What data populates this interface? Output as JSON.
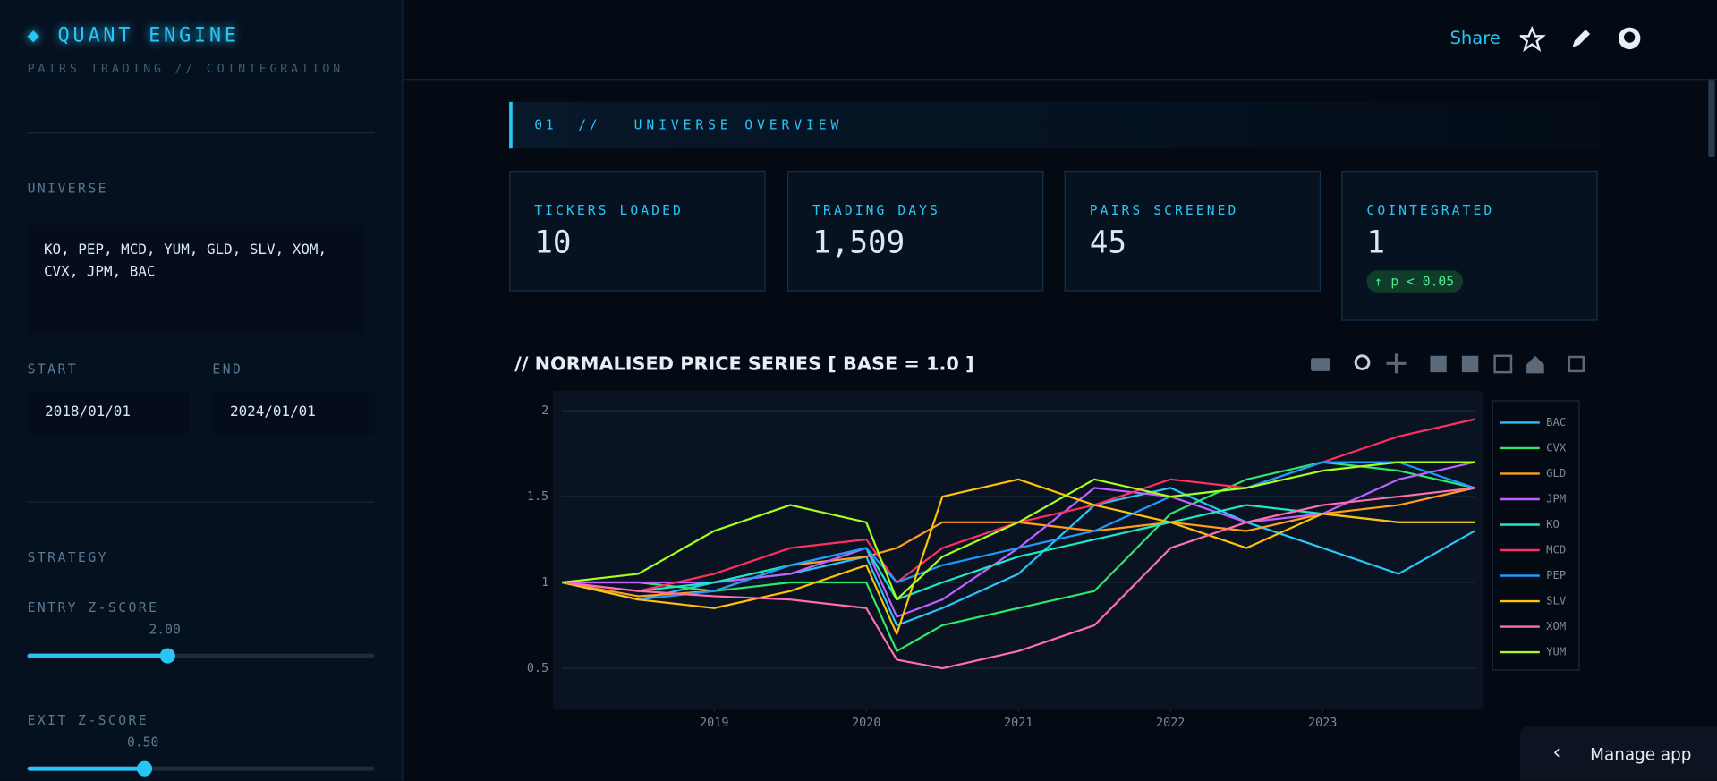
{
  "sidebar": {
    "brand": "◆ QUANT ENGINE",
    "tagline": "PAIRS TRADING // COINTEGRATION",
    "universe_label": "UNIVERSE",
    "universe_value": "KO, PEP, MCD, YUM, GLD, SLV, XOM, CVX, JPM, BAC",
    "start_label": "START",
    "start_value": "2018/01/01",
    "end_label": "END",
    "end_value": "2024/01/01",
    "strategy_label": "STRATEGY",
    "entry_label": "ENTRY Z-SCORE",
    "entry_value": "2.00",
    "exit_label": "EXIT Z-SCORE",
    "exit_value": "0.50"
  },
  "header": {
    "share": "Share",
    "manage": "Manage app"
  },
  "section": {
    "number": "01",
    "separator": "//",
    "title": "UNIVERSE OVERVIEW"
  },
  "metrics": [
    {
      "label": "TICKERS LOADED",
      "value": "10"
    },
    {
      "label": "TRADING DAYS",
      "value": "1,509"
    },
    {
      "label": "PAIRS SCREENED",
      "value": "45"
    },
    {
      "label": "COINTEGRATED",
      "value": "1",
      "badge": "p < 0.05"
    }
  ],
  "chart_data": {
    "type": "line",
    "title": "// NORMALISED PRICE SERIES  [ BASE = 1.0 ]",
    "x": [
      2018,
      2018.5,
      2019,
      2019.5,
      2020,
      2020.2,
      2020.5,
      2021,
      2021.5,
      2022,
      2022.5,
      2023,
      2023.5,
      2024
    ],
    "xlim": [
      2017.94,
      2024.06
    ],
    "xticks": [
      2019,
      2020,
      2021,
      2022,
      2023
    ],
    "ylim": [
      0.26,
      2.115
    ],
    "yticks": [
      0.5,
      1,
      1.5,
      2
    ],
    "grid": true,
    "legend": "right",
    "series": [
      {
        "name": "BAC",
        "color": "#29c5f6",
        "values": [
          1,
          0.9,
          1.0,
          1.05,
          1.15,
          0.75,
          0.85,
          1.05,
          1.45,
          1.55,
          1.35,
          1.2,
          1.05,
          1.3
        ]
      },
      {
        "name": "CVX",
        "color": "#2ee66b",
        "values": [
          1,
          1.0,
          0.95,
          1.0,
          1.0,
          0.6,
          0.75,
          0.85,
          0.95,
          1.4,
          1.6,
          1.7,
          1.65,
          1.55
        ]
      },
      {
        "name": "GLD",
        "color": "#ff9f1c",
        "values": [
          1,
          0.92,
          0.95,
          1.1,
          1.15,
          1.2,
          1.35,
          1.35,
          1.3,
          1.35,
          1.3,
          1.4,
          1.45,
          1.55
        ]
      },
      {
        "name": "JPM",
        "color": "#c061ff",
        "values": [
          1,
          1.0,
          1.0,
          1.05,
          1.2,
          0.8,
          0.9,
          1.2,
          1.55,
          1.5,
          1.35,
          1.4,
          1.6,
          1.7
        ]
      },
      {
        "name": "KO",
        "color": "#1de9c6",
        "values": [
          1,
          0.95,
          1.0,
          1.1,
          1.2,
          0.9,
          1.0,
          1.15,
          1.25,
          1.35,
          1.45,
          1.4,
          1.35,
          1.35
        ]
      },
      {
        "name": "MCD",
        "color": "#ff2e63",
        "values": [
          1,
          0.95,
          1.05,
          1.2,
          1.25,
          1.0,
          1.2,
          1.35,
          1.45,
          1.6,
          1.55,
          1.7,
          1.85,
          1.95
        ]
      },
      {
        "name": "PEP",
        "color": "#1e9bff",
        "values": [
          1,
          0.9,
          0.95,
          1.1,
          1.2,
          1.0,
          1.1,
          1.2,
          1.3,
          1.5,
          1.55,
          1.7,
          1.7,
          1.55
        ]
      },
      {
        "name": "SLV",
        "color": "#ffc107",
        "values": [
          1,
          0.9,
          0.85,
          0.95,
          1.1,
          0.7,
          1.5,
          1.6,
          1.45,
          1.35,
          1.2,
          1.4,
          1.35,
          1.35
        ]
      },
      {
        "name": "XOM",
        "color": "#ff6fae",
        "values": [
          1,
          0.95,
          0.92,
          0.9,
          0.85,
          0.55,
          0.5,
          0.6,
          0.75,
          1.2,
          1.35,
          1.45,
          1.5,
          1.55
        ]
      },
      {
        "name": "YUM",
        "color": "#a6ff1c",
        "values": [
          1,
          1.05,
          1.3,
          1.45,
          1.35,
          0.9,
          1.15,
          1.35,
          1.6,
          1.5,
          1.55,
          1.65,
          1.7,
          1.7
        ]
      }
    ]
  }
}
